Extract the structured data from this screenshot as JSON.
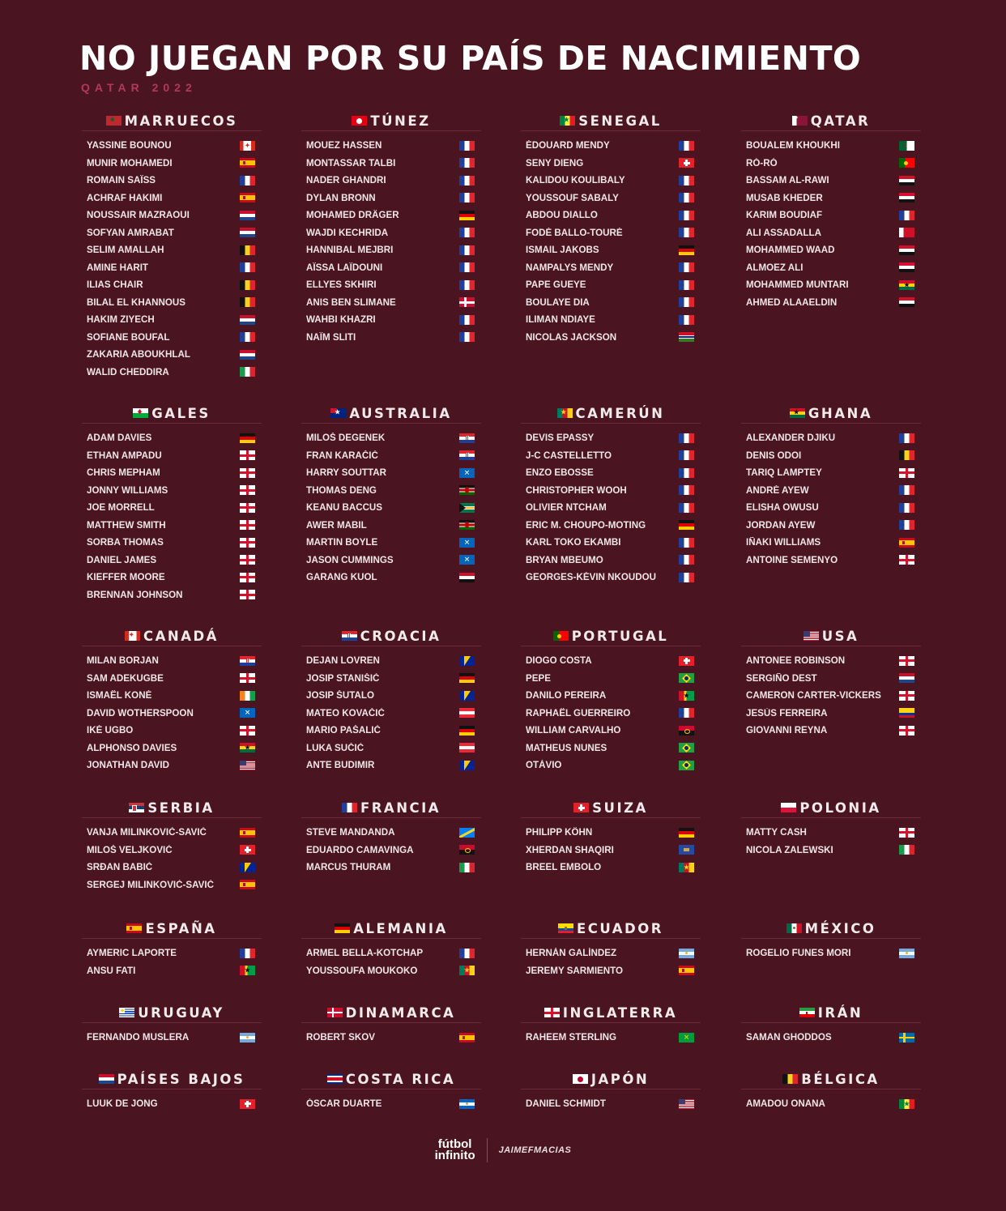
{
  "header": {
    "title": "NO JUEGAN POR SU PAÍS DE NACIMIENTO",
    "subtitle": "QATAR 2022"
  },
  "footer": {
    "logo_line1": "fútbol",
    "logo_line2": "infinito",
    "credit": "JAIMEFMACIAS"
  },
  "sections": [
    {
      "country": "MARRUECOS",
      "flag": "MAR",
      "players": [
        {
          "name": "YASSINE BOUNOU",
          "flag": "CAN"
        },
        {
          "name": "MUNIR MOHAMEDI",
          "flag": "ESP"
        },
        {
          "name": "ROMAIN SAÏSS",
          "flag": "FRA"
        },
        {
          "name": "ACHRAF HAKIMI",
          "flag": "ESP"
        },
        {
          "name": "NOUSSAIR MAZRAOUI",
          "flag": "NED"
        },
        {
          "name": "SOFYAN AMRABAT",
          "flag": "NED"
        },
        {
          "name": "SELIM AMALLAH",
          "flag": "BEL"
        },
        {
          "name": "AMINE HARIT",
          "flag": "FRA"
        },
        {
          "name": "ILIAS CHAIR",
          "flag": "BEL"
        },
        {
          "name": "BILAL EL KHANNOUS",
          "flag": "BEL"
        },
        {
          "name": "HAKIM ZIYECH",
          "flag": "NED"
        },
        {
          "name": "SOFIANE BOUFAL",
          "flag": "FRA"
        },
        {
          "name": "ZAKARIA ABOUKHLAL",
          "flag": "NED"
        },
        {
          "name": "WALID CHEDDIRA",
          "flag": "ITA"
        }
      ]
    },
    {
      "country": "TÚNEZ",
      "flag": "TUN",
      "players": [
        {
          "name": "MOUEZ HASSEN",
          "flag": "FRA"
        },
        {
          "name": "MONTASSAR TALBI",
          "flag": "FRA"
        },
        {
          "name": "NADER GHANDRI",
          "flag": "FRA"
        },
        {
          "name": "DYLAN BRONN",
          "flag": "FRA"
        },
        {
          "name": "MOHAMED DRÄGER",
          "flag": "GER"
        },
        {
          "name": "WAJDI KECHRIDA",
          "flag": "FRA"
        },
        {
          "name": "HANNIBAL MEJBRI",
          "flag": "FRA"
        },
        {
          "name": "AÏSSA LAÏDOUNI",
          "flag": "FRA"
        },
        {
          "name": "ELLYES SKHIRI",
          "flag": "FRA"
        },
        {
          "name": "ANIS BEN SLIMANE",
          "flag": "DEN"
        },
        {
          "name": "WAHBI KHAZRI",
          "flag": "FRA"
        },
        {
          "name": "NAÏM SLITI",
          "flag": "FRA"
        }
      ]
    },
    {
      "country": "SENEGAL",
      "flag": "SEN",
      "players": [
        {
          "name": "ÉDOUARD MENDY",
          "flag": "FRA"
        },
        {
          "name": "SENY DIENG",
          "flag": "SUI"
        },
        {
          "name": "KALIDOU KOULIBALY",
          "flag": "FRA"
        },
        {
          "name": "YOUSSOUF SABALY",
          "flag": "FRA"
        },
        {
          "name": "ABDOU DIALLO",
          "flag": "FRA"
        },
        {
          "name": "FODÉ BALLO-TOURÉ",
          "flag": "FRA"
        },
        {
          "name": "ISMAIL JAKOBS",
          "flag": "GER"
        },
        {
          "name": "NAMPALYS MENDY",
          "flag": "FRA"
        },
        {
          "name": "PAPE GUEYE",
          "flag": "FRA"
        },
        {
          "name": "BOULAYE DIA",
          "flag": "FRA"
        },
        {
          "name": "ILIMAN NDIAYE",
          "flag": "FRA"
        },
        {
          "name": "NICOLAS JACKSON",
          "flag": "GAM"
        }
      ]
    },
    {
      "country": "QATAR",
      "flag": "QAT",
      "players": [
        {
          "name": "BOUALEM KHOUKHI",
          "flag": "ALG"
        },
        {
          "name": "RÓ-RÓ",
          "flag": "POR"
        },
        {
          "name": "BASSAM AL-RAWI",
          "flag": "IRQ"
        },
        {
          "name": "MUSAB KHEDER",
          "flag": "SUD"
        },
        {
          "name": "KARIM BOUDIAF",
          "flag": "FRA"
        },
        {
          "name": "ALI ASSADALLA",
          "flag": "BHR"
        },
        {
          "name": "MOHAMMED WAAD",
          "flag": "IRQ"
        },
        {
          "name": "ALMOEZ ALI",
          "flag": "SUD"
        },
        {
          "name": "MOHAMMED MUNTARI",
          "flag": "GHA"
        },
        {
          "name": "AHMED ALAAELDIN",
          "flag": "EGY"
        }
      ]
    },
    {
      "country": "GALES",
      "flag": "WAL",
      "players": [
        {
          "name": "ADAM DAVIES",
          "flag": "GER"
        },
        {
          "name": "ETHAN AMPADU",
          "flag": "ENG"
        },
        {
          "name": "CHRIS MEPHAM",
          "flag": "ENG"
        },
        {
          "name": "JONNY WILLIAMS",
          "flag": "ENG"
        },
        {
          "name": "JOE MORRELL",
          "flag": "ENG"
        },
        {
          "name": "MATTHEW SMITH",
          "flag": "ENG"
        },
        {
          "name": "SORBA THOMAS",
          "flag": "ENG"
        },
        {
          "name": "DANIEL JAMES",
          "flag": "ENG"
        },
        {
          "name": "KIEFFER MOORE",
          "flag": "ENG"
        },
        {
          "name": "BRENNAN JOHNSON",
          "flag": "ENG"
        }
      ]
    },
    {
      "country": "AUSTRALIA",
      "flag": "AUS",
      "players": [
        {
          "name": "MILOŠ DEGENEK",
          "flag": "CRO"
        },
        {
          "name": "FRAN KARAČIĆ",
          "flag": "CRO"
        },
        {
          "name": "HARRY SOUTTAR",
          "flag": "SCO"
        },
        {
          "name": "THOMAS DENG",
          "flag": "KEN"
        },
        {
          "name": "KEANU BACCUS",
          "flag": "RSA"
        },
        {
          "name": "AWER MABIL",
          "flag": "KEN"
        },
        {
          "name": "MARTIN BOYLE",
          "flag": "SCO"
        },
        {
          "name": "JASON CUMMINGS",
          "flag": "SCO"
        },
        {
          "name": "GARANG KUOL",
          "flag": "EGY"
        }
      ]
    },
    {
      "country": "CAMERÚN",
      "flag": "CMR",
      "players": [
        {
          "name": "DEVIS EPASSY",
          "flag": "FRA"
        },
        {
          "name": "J-C CASTELLETTO",
          "flag": "FRA"
        },
        {
          "name": "ENZO EBOSSE",
          "flag": "FRA"
        },
        {
          "name": "CHRISTOPHER WOOH",
          "flag": "FRA"
        },
        {
          "name": "OLIVIER NTCHAM",
          "flag": "FRA"
        },
        {
          "name": "ERIC M. CHOUPO-MOTING",
          "flag": "GER"
        },
        {
          "name": "KARL TOKO EKAMBI",
          "flag": "FRA"
        },
        {
          "name": "BRYAN MBEUMO",
          "flag": "FRA"
        },
        {
          "name": "GEORGES-KÉVIN NKOUDOU",
          "flag": "FRA"
        }
      ]
    },
    {
      "country": "GHANA",
      "flag": "GHA",
      "players": [
        {
          "name": "ALEXANDER DJIKU",
          "flag": "FRA"
        },
        {
          "name": "DENIS ODOI",
          "flag": "BEL"
        },
        {
          "name": "TARIQ LAMPTEY",
          "flag": "ENG"
        },
        {
          "name": "ANDRÉ AYEW",
          "flag": "FRA"
        },
        {
          "name": "ELISHA OWUSU",
          "flag": "FRA"
        },
        {
          "name": "JORDAN AYEW",
          "flag": "FRA"
        },
        {
          "name": "IÑAKI WILLIAMS",
          "flag": "ESP"
        },
        {
          "name": "ANTOINE SEMENYO",
          "flag": "ENG"
        }
      ]
    },
    {
      "country": "CANADÁ",
      "flag": "CAN",
      "players": [
        {
          "name": "MILAN BORJAN",
          "flag": "CRO"
        },
        {
          "name": "SAM ADEKUGBE",
          "flag": "ENG"
        },
        {
          "name": "ISMAËL KONÉ",
          "flag": "CIV"
        },
        {
          "name": "DAVID WOTHERSPOON",
          "flag": "SCO"
        },
        {
          "name": "IKÉ UGBO",
          "flag": "ENG"
        },
        {
          "name": "ALPHONSO DAVIES",
          "flag": "GHA"
        },
        {
          "name": "JONATHAN DAVID",
          "flag": "USA"
        }
      ]
    },
    {
      "country": "CROACIA",
      "flag": "CRO",
      "players": [
        {
          "name": "DEJAN LOVREN",
          "flag": "BIH"
        },
        {
          "name": "JOSIP STANIŠIĆ",
          "flag": "GER"
        },
        {
          "name": "JOSIP ŠUTALO",
          "flag": "BIH"
        },
        {
          "name": "MATEO KOVAČIĆ",
          "flag": "AUT"
        },
        {
          "name": "MARIO PAŠALIĆ",
          "flag": "GER"
        },
        {
          "name": "LUKA SUČIĆ",
          "flag": "AUT"
        },
        {
          "name": "ANTE BUDIMIR",
          "flag": "BIH"
        }
      ]
    },
    {
      "country": "PORTUGAL",
      "flag": "POR",
      "players": [
        {
          "name": "DIOGO COSTA",
          "flag": "SUI"
        },
        {
          "name": "PEPE",
          "flag": "BRA"
        },
        {
          "name": "DANILO PEREIRA",
          "flag": "GNB"
        },
        {
          "name": "RAPHAËL GUERREIRO",
          "flag": "FRA"
        },
        {
          "name": "WILLIAM CARVALHO",
          "flag": "ANG"
        },
        {
          "name": "MATHEUS NUNES",
          "flag": "BRA"
        },
        {
          "name": "OTÁVIO",
          "flag": "BRA"
        }
      ]
    },
    {
      "country": "USA",
      "flag": "USA",
      "players": [
        {
          "name": "ANTONEE ROBINSON",
          "flag": "ENG"
        },
        {
          "name": "SERGIÑO DEST",
          "flag": "NED"
        },
        {
          "name": "CAMERON CARTER-VICKERS",
          "flag": "ENG"
        },
        {
          "name": "JESÚS FERREIRA",
          "flag": "COL"
        },
        {
          "name": "GIOVANNI REYNA",
          "flag": "ENG"
        }
      ]
    },
    {
      "country": "SERBIA",
      "flag": "SRB",
      "players": [
        {
          "name": "VANJA MILINKOVIĆ-SAVIĆ",
          "flag": "ESP"
        },
        {
          "name": "MILOŠ VELJKOVIĆ",
          "flag": "SUI"
        },
        {
          "name": "SRĐAN BABIĆ",
          "flag": "BIH"
        },
        {
          "name": "SERGEJ MILINKOVIĆ-SAVIĆ",
          "flag": "ESP"
        }
      ]
    },
    {
      "country": "FRANCIA",
      "flag": "FRA",
      "players": [
        {
          "name": "STEVE MANDANDA",
          "flag": "COD"
        },
        {
          "name": "EDUARDO CAMAVINGA",
          "flag": "ANG"
        },
        {
          "name": "MARCUS THURAM",
          "flag": "ITA"
        }
      ]
    },
    {
      "country": "SUIZA",
      "flag": "SUI",
      "players": [
        {
          "name": "PHILIPP KÖHN",
          "flag": "GER"
        },
        {
          "name": "XHERDAN SHAQIRI",
          "flag": "KOS"
        },
        {
          "name": "BREEL EMBOLO",
          "flag": "CMR"
        }
      ]
    },
    {
      "country": "POLONIA",
      "flag": "POL",
      "players": [
        {
          "name": "MATTY CASH",
          "flag": "ENG"
        },
        {
          "name": "NICOLA ZALEWSKI",
          "flag": "ITA"
        }
      ]
    },
    {
      "country": "ESPAÑA",
      "flag": "ESP",
      "players": [
        {
          "name": "AYMERIC LAPORTE",
          "flag": "FRA"
        },
        {
          "name": "ANSU FATI",
          "flag": "GNB"
        }
      ]
    },
    {
      "country": "ALEMANIA",
      "flag": "GER",
      "players": [
        {
          "name": "ARMEL BELLA-KOTCHAP",
          "flag": "FRA"
        },
        {
          "name": "YOUSSOUFA MOUKOKO",
          "flag": "CMR"
        }
      ]
    },
    {
      "country": "ECUADOR",
      "flag": "ECU",
      "players": [
        {
          "name": "HERNÁN GALÍNDEZ",
          "flag": "ARG"
        },
        {
          "name": "JEREMY SARMIENTO",
          "flag": "ESP"
        }
      ]
    },
    {
      "country": "MÉXICO",
      "flag": "MEX",
      "players": [
        {
          "name": "ROGELIO FUNES MORI",
          "flag": "ARG"
        }
      ]
    },
    {
      "country": "URUGUAY",
      "flag": "URU",
      "players": [
        {
          "name": "FERNANDO MUSLERA",
          "flag": "ARG"
        }
      ]
    },
    {
      "country": "DINAMARCA",
      "flag": "DEN",
      "players": [
        {
          "name": "ROBERT SKOV",
          "flag": "ESP"
        }
      ]
    },
    {
      "country": "INGLATERRA",
      "flag": "ENG",
      "players": [
        {
          "name": "RAHEEM STERLING",
          "flag": "JAM"
        }
      ]
    },
    {
      "country": "IRÁN",
      "flag": "IRN",
      "players": [
        {
          "name": "SAMAN GHODDOS",
          "flag": "SWE"
        }
      ]
    },
    {
      "country": "PAÍSES BAJOS",
      "flag": "NED",
      "players": [
        {
          "name": "LUUK DE JONG",
          "flag": "SUI"
        }
      ]
    },
    {
      "country": "COSTA RICA",
      "flag": "CRC",
      "players": [
        {
          "name": "ÓSCAR DUARTE",
          "flag": "NCA"
        }
      ]
    },
    {
      "country": "JAPÓN",
      "flag": "JPN",
      "players": [
        {
          "name": "DANIEL SCHMIDT",
          "flag": "USA"
        }
      ]
    },
    {
      "country": "BÉLGICA",
      "flag": "BEL",
      "players": [
        {
          "name": "AMADOU ONANA",
          "flag": "SEN"
        }
      ]
    }
  ]
}
